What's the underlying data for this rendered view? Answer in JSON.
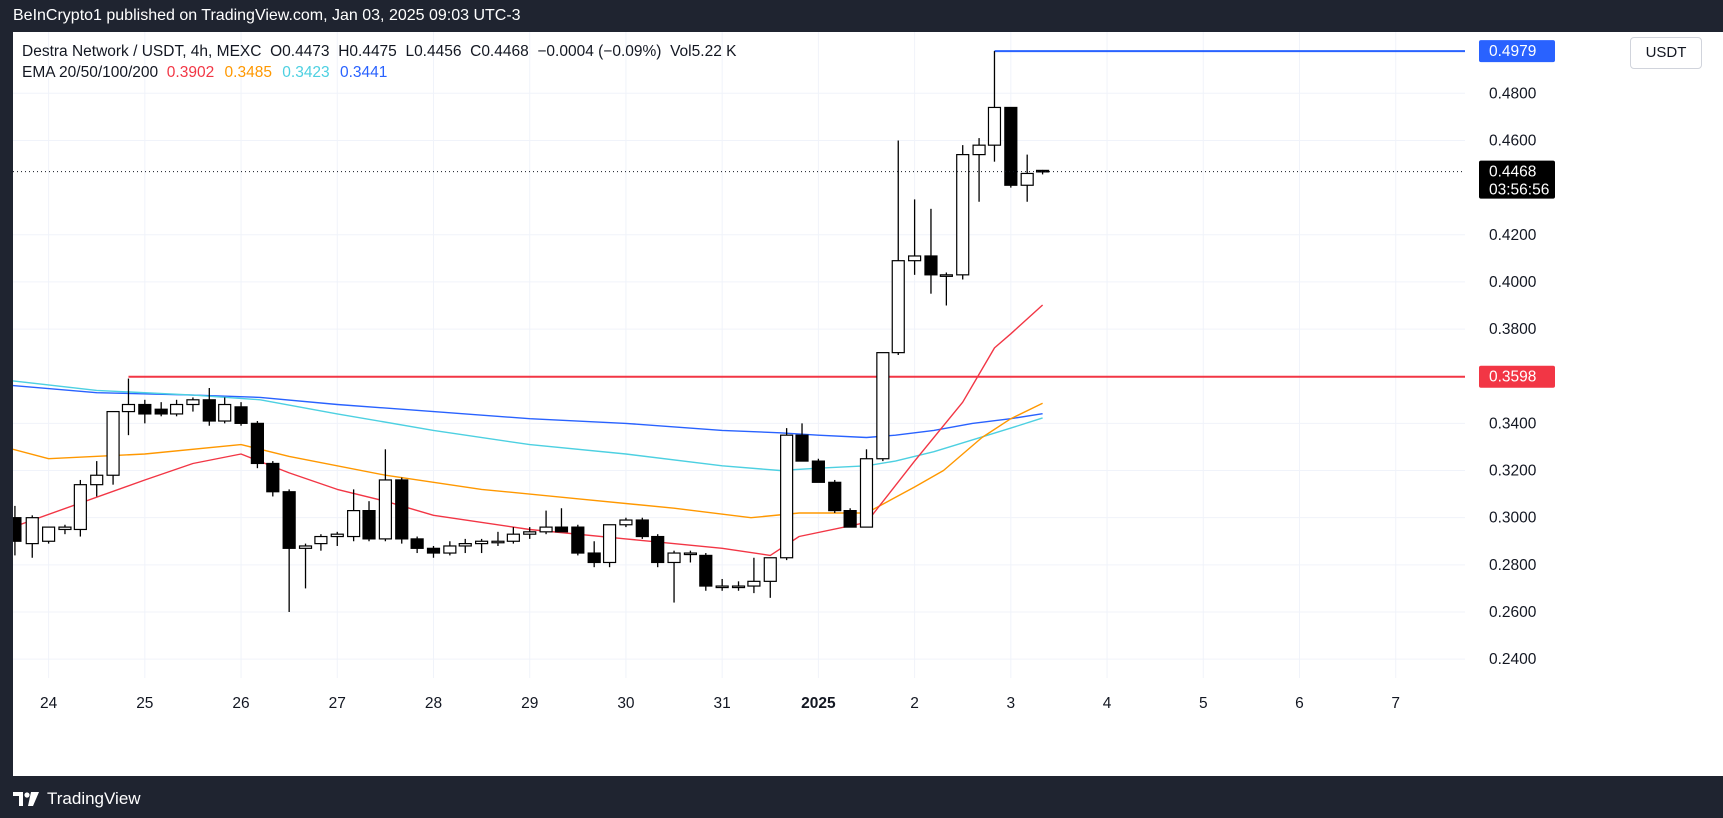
{
  "header": {
    "published_text": "BeInCrypto1 published on TradingView.com, Jan 03, 2025 09:03 UTC-3"
  },
  "footer": {
    "brand": "TradingView"
  },
  "legend": {
    "symbol_line": {
      "symbol": "Destra Network / USDT, 4h, MEXC",
      "o_label": "O",
      "o": "0.4473",
      "h_label": "H",
      "h": "0.4475",
      "l_label": "L",
      "l": "0.4456",
      "c_label": "C",
      "c": "0.4468",
      "change": "−0.0004 (−0.09%)",
      "vol_label": "Vol",
      "vol": "5.22 K"
    },
    "ema_line": {
      "label": "EMA 20/50/100/200",
      "ema20": "0.3902",
      "ema50": "0.3485",
      "ema100": "0.3423",
      "ema200": "0.3441"
    }
  },
  "currency_button": "USDT",
  "colors": {
    "ema20": "#f23645",
    "ema50": "#ff9800",
    "ema100": "#4dd0e1",
    "ema200": "#2962ff",
    "resistance": "#f23645",
    "high_line": "#2962ff",
    "price_label_bg": "#000000",
    "candle_up_fill": "#ffffff",
    "candle_down_fill": "#000000",
    "candle_stroke": "#000000"
  },
  "chart_data": {
    "type": "candlestick",
    "ylim": [
      0.232,
      0.506
    ],
    "y_ticks": [
      "0.4800",
      "0.4600",
      "0.4200",
      "0.4000",
      "0.3800",
      "0.3400",
      "0.3200",
      "0.3000",
      "0.2800",
      "0.2600",
      "0.2400"
    ],
    "x_ticks": [
      "24",
      "25",
      "26",
      "27",
      "28",
      "29",
      "30",
      "31",
      "2025",
      "2",
      "3",
      "4",
      "5",
      "6",
      "7"
    ],
    "x_tick_days": [
      0,
      1,
      2,
      3,
      4,
      5,
      6,
      7,
      8,
      9,
      10,
      11,
      12,
      13,
      14
    ],
    "x_range_days": [
      -0.37,
      14.72
    ],
    "highlight_tick": "2025",
    "candles": [
      {
        "d": -0.35,
        "o": 0.3,
        "h": 0.305,
        "l": 0.284,
        "c": 0.29
      },
      {
        "d": -0.17,
        "o": 0.289,
        "h": 0.301,
        "l": 0.283,
        "c": 0.3
      },
      {
        "d": 0.0,
        "o": 0.29,
        "h": 0.296,
        "l": 0.289,
        "c": 0.296
      },
      {
        "d": 0.17,
        "o": 0.295,
        "h": 0.297,
        "l": 0.293,
        "c": 0.296
      },
      {
        "d": 0.33,
        "o": 0.295,
        "h": 0.316,
        "l": 0.292,
        "c": 0.314
      },
      {
        "d": 0.5,
        "o": 0.314,
        "h": 0.324,
        "l": 0.309,
        "c": 0.318
      },
      {
        "d": 0.67,
        "o": 0.318,
        "h": 0.345,
        "l": 0.314,
        "c": 0.345
      },
      {
        "d": 0.83,
        "o": 0.345,
        "h": 0.359,
        "l": 0.335,
        "c": 0.348
      },
      {
        "d": 1.0,
        "o": 0.348,
        "h": 0.35,
        "l": 0.34,
        "c": 0.344
      },
      {
        "d": 1.17,
        "o": 0.346,
        "h": 0.349,
        "l": 0.343,
        "c": 0.344
      },
      {
        "d": 1.33,
        "o": 0.344,
        "h": 0.35,
        "l": 0.343,
        "c": 0.348
      },
      {
        "d": 1.5,
        "o": 0.348,
        "h": 0.351,
        "l": 0.345,
        "c": 0.35
      },
      {
        "d": 1.67,
        "o": 0.35,
        "h": 0.355,
        "l": 0.339,
        "c": 0.341
      },
      {
        "d": 1.83,
        "o": 0.341,
        "h": 0.351,
        "l": 0.34,
        "c": 0.348
      },
      {
        "d": 2.0,
        "o": 0.347,
        "h": 0.349,
        "l": 0.339,
        "c": 0.34
      },
      {
        "d": 2.17,
        "o": 0.34,
        "h": 0.341,
        "l": 0.321,
        "c": 0.323
      },
      {
        "d": 2.33,
        "o": 0.323,
        "h": 0.324,
        "l": 0.309,
        "c": 0.311
      },
      {
        "d": 2.5,
        "o": 0.311,
        "h": 0.312,
        "l": 0.26,
        "c": 0.287
      },
      {
        "d": 2.67,
        "o": 0.287,
        "h": 0.289,
        "l": 0.27,
        "c": 0.288
      },
      {
        "d": 2.83,
        "o": 0.289,
        "h": 0.293,
        "l": 0.286,
        "c": 0.292
      },
      {
        "d": 3.0,
        "o": 0.292,
        "h": 0.294,
        "l": 0.288,
        "c": 0.293
      },
      {
        "d": 3.17,
        "o": 0.292,
        "h": 0.312,
        "l": 0.29,
        "c": 0.303
      },
      {
        "d": 3.33,
        "o": 0.303,
        "h": 0.307,
        "l": 0.29,
        "c": 0.291
      },
      {
        "d": 3.5,
        "o": 0.291,
        "h": 0.329,
        "l": 0.29,
        "c": 0.316
      },
      {
        "d": 3.67,
        "o": 0.316,
        "h": 0.317,
        "l": 0.289,
        "c": 0.291
      },
      {
        "d": 3.83,
        "o": 0.291,
        "h": 0.292,
        "l": 0.285,
        "c": 0.287
      },
      {
        "d": 4.0,
        "o": 0.287,
        "h": 0.288,
        "l": 0.283,
        "c": 0.285
      },
      {
        "d": 4.17,
        "o": 0.285,
        "h": 0.29,
        "l": 0.284,
        "c": 0.288
      },
      {
        "d": 4.33,
        "o": 0.288,
        "h": 0.291,
        "l": 0.285,
        "c": 0.289
      },
      {
        "d": 4.5,
        "o": 0.289,
        "h": 0.291,
        "l": 0.285,
        "c": 0.29
      },
      {
        "d": 4.67,
        "o": 0.29,
        "h": 0.294,
        "l": 0.288,
        "c": 0.29
      },
      {
        "d": 4.83,
        "o": 0.29,
        "h": 0.296,
        "l": 0.289,
        "c": 0.293
      },
      {
        "d": 5.0,
        "o": 0.293,
        "h": 0.296,
        "l": 0.291,
        "c": 0.294
      },
      {
        "d": 5.17,
        "o": 0.294,
        "h": 0.303,
        "l": 0.293,
        "c": 0.296
      },
      {
        "d": 5.33,
        "o": 0.296,
        "h": 0.304,
        "l": 0.294,
        "c": 0.294
      },
      {
        "d": 5.5,
        "o": 0.296,
        "h": 0.297,
        "l": 0.284,
        "c": 0.285
      },
      {
        "d": 5.67,
        "o": 0.285,
        "h": 0.29,
        "l": 0.279,
        "c": 0.281
      },
      {
        "d": 5.83,
        "o": 0.281,
        "h": 0.297,
        "l": 0.279,
        "c": 0.297
      },
      {
        "d": 6.0,
        "o": 0.297,
        "h": 0.3,
        "l": 0.296,
        "c": 0.299
      },
      {
        "d": 6.17,
        "o": 0.299,
        "h": 0.3,
        "l": 0.291,
        "c": 0.292
      },
      {
        "d": 6.33,
        "o": 0.292,
        "h": 0.293,
        "l": 0.279,
        "c": 0.281
      },
      {
        "d": 6.5,
        "o": 0.281,
        "h": 0.286,
        "l": 0.264,
        "c": 0.285
      },
      {
        "d": 6.67,
        "o": 0.285,
        "h": 0.286,
        "l": 0.281,
        "c": 0.285
      },
      {
        "d": 6.83,
        "o": 0.284,
        "h": 0.285,
        "l": 0.269,
        "c": 0.271
      },
      {
        "d": 7.0,
        "o": 0.271,
        "h": 0.274,
        "l": 0.269,
        "c": 0.271
      },
      {
        "d": 7.17,
        "o": 0.271,
        "h": 0.273,
        "l": 0.269,
        "c": 0.271
      },
      {
        "d": 7.33,
        "o": 0.271,
        "h": 0.283,
        "l": 0.268,
        "c": 0.273
      },
      {
        "d": 7.5,
        "o": 0.273,
        "h": 0.283,
        "l": 0.266,
        "c": 0.283
      },
      {
        "d": 7.67,
        "o": 0.283,
        "h": 0.338,
        "l": 0.282,
        "c": 0.335
      },
      {
        "d": 7.83,
        "o": 0.335,
        "h": 0.34,
        "l": 0.324,
        "c": 0.324
      },
      {
        "d": 8.0,
        "o": 0.324,
        "h": 0.325,
        "l": 0.315,
        "c": 0.315
      },
      {
        "d": 8.17,
        "o": 0.315,
        "h": 0.316,
        "l": 0.302,
        "c": 0.303
      },
      {
        "d": 8.33,
        "o": 0.303,
        "h": 0.304,
        "l": 0.296,
        "c": 0.296
      },
      {
        "d": 8.5,
        "o": 0.296,
        "h": 0.329,
        "l": 0.296,
        "c": 0.325
      },
      {
        "d": 8.67,
        "o": 0.325,
        "h": 0.37,
        "l": 0.324,
        "c": 0.37
      },
      {
        "d": 8.83,
        "o": 0.37,
        "h": 0.46,
        "l": 0.369,
        "c": 0.409
      },
      {
        "d": 9.0,
        "o": 0.409,
        "h": 0.435,
        "l": 0.403,
        "c": 0.411
      },
      {
        "d": 9.17,
        "o": 0.411,
        "h": 0.431,
        "l": 0.395,
        "c": 0.403
      },
      {
        "d": 9.33,
        "o": 0.403,
        "h": 0.404,
        "l": 0.39,
        "c": 0.403
      },
      {
        "d": 9.5,
        "o": 0.403,
        "h": 0.458,
        "l": 0.401,
        "c": 0.454
      },
      {
        "d": 9.67,
        "o": 0.454,
        "h": 0.461,
        "l": 0.434,
        "c": 0.458
      },
      {
        "d": 9.83,
        "o": 0.458,
        "h": 0.4979,
        "l": 0.451,
        "c": 0.474
      },
      {
        "d": 10.0,
        "o": 0.474,
        "h": 0.474,
        "l": 0.44,
        "c": 0.441
      },
      {
        "d": 10.17,
        "o": 0.441,
        "h": 0.454,
        "l": 0.434,
        "c": 0.446
      },
      {
        "d": 10.33,
        "o": 0.4473,
        "h": 0.4475,
        "l": 0.4456,
        "c": 0.4468
      }
    ],
    "ema20": {
      "d": [
        -0.37,
        1.0,
        1.5,
        2.0,
        2.5,
        3.0,
        3.5,
        4.0,
        5.0,
        6.0,
        7.0,
        7.5,
        7.8,
        8.5,
        9.0,
        9.5,
        9.83,
        10.0,
        10.33
      ],
      "v": [
        0.296,
        0.316,
        0.323,
        0.327,
        0.319,
        0.312,
        0.307,
        0.301,
        0.295,
        0.291,
        0.287,
        0.284,
        0.292,
        0.298,
        0.324,
        0.349,
        0.372,
        0.378,
        0.3902
      ]
    },
    "ema50": {
      "d": [
        -0.37,
        0.0,
        1.0,
        2.0,
        2.5,
        3.5,
        4.5,
        5.5,
        6.5,
        7.3,
        7.8,
        8.5,
        9.0,
        9.3,
        9.7,
        10.0,
        10.33
      ],
      "v": [
        0.329,
        0.325,
        0.327,
        0.331,
        0.326,
        0.318,
        0.312,
        0.308,
        0.304,
        0.3,
        0.302,
        0.302,
        0.313,
        0.32,
        0.334,
        0.342,
        0.3485
      ]
    },
    "ema100": {
      "d": [
        -0.37,
        0.5,
        1.5,
        2.2,
        3.0,
        4.0,
        5.0,
        6.0,
        7.0,
        7.6,
        8.0,
        8.5,
        8.8,
        9.2,
        9.6,
        10.0,
        10.33
      ],
      "v": [
        0.358,
        0.354,
        0.352,
        0.35,
        0.344,
        0.337,
        0.331,
        0.327,
        0.322,
        0.32,
        0.321,
        0.322,
        0.324,
        0.328,
        0.333,
        0.338,
        0.3423
      ]
    },
    "ema200": {
      "d": [
        -0.37,
        0.5,
        1.5,
        2.2,
        3.0,
        4.0,
        5.0,
        6.0,
        7.0,
        7.6,
        8.0,
        8.5,
        8.8,
        9.2,
        9.6,
        10.0,
        10.33
      ],
      "v": [
        0.356,
        0.353,
        0.352,
        0.351,
        0.348,
        0.345,
        0.342,
        0.34,
        0.337,
        0.336,
        0.335,
        0.334,
        0.335,
        0.337,
        0.34,
        0.342,
        0.3441
      ]
    },
    "resistance": {
      "value": 0.3598,
      "label": "0.3598",
      "from_day": 0.83
    },
    "high_line": {
      "value": 0.4979,
      "label": "0.4979",
      "from_day": 9.83
    },
    "last_price": {
      "value": 0.4468,
      "label": "0.4468",
      "countdown": "03:56:56"
    }
  }
}
